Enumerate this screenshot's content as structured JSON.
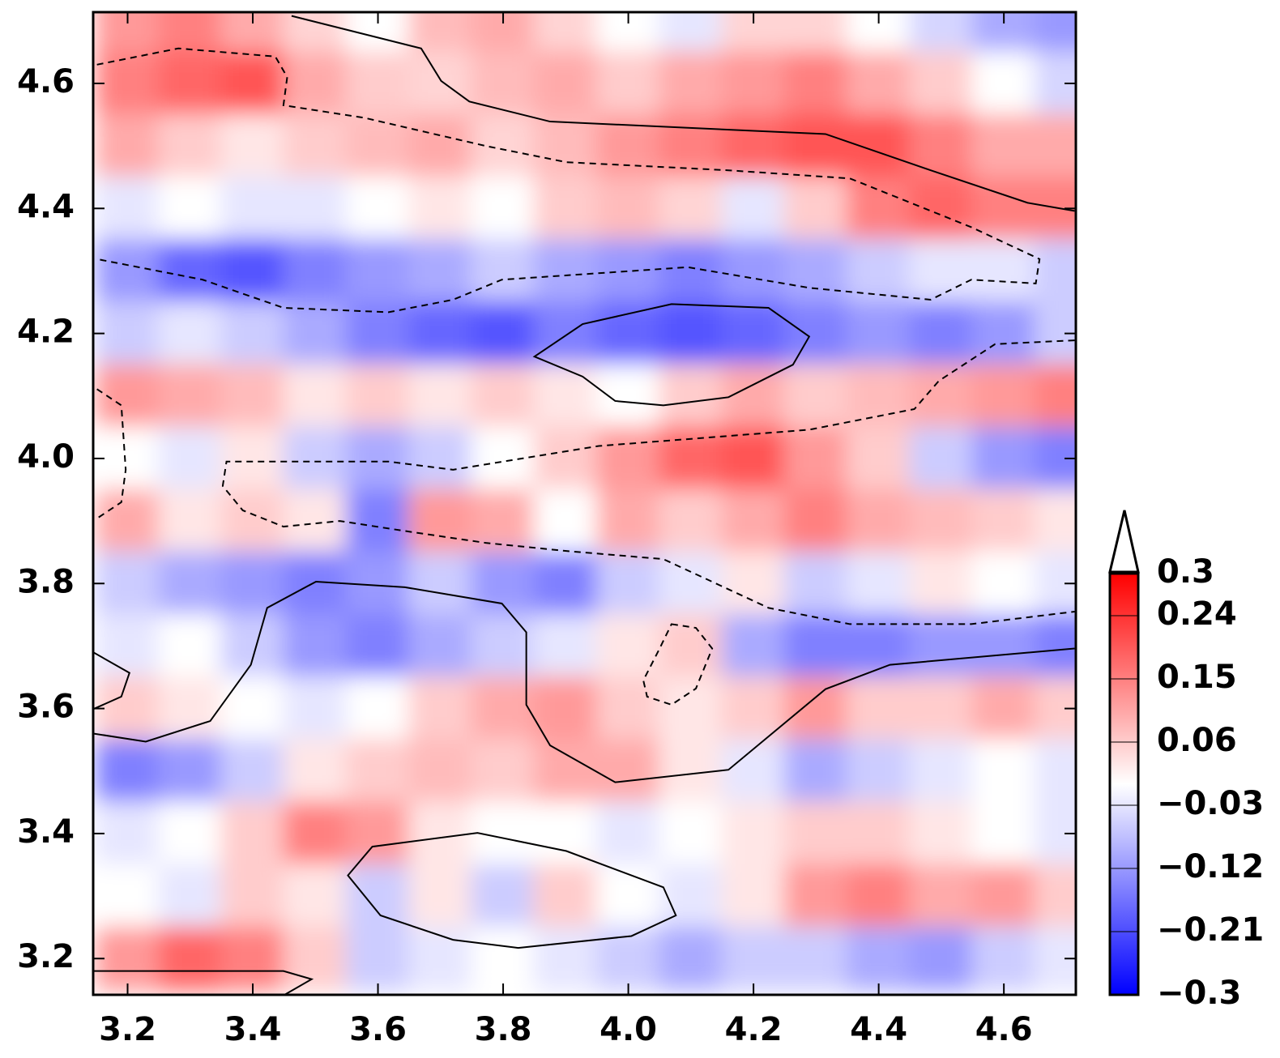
{
  "chart_data": {
    "type": "heatmap",
    "x": [
      3.2,
      3.3,
      3.4,
      3.5,
      3.6,
      3.7,
      3.8,
      3.9,
      4.0,
      4.1,
      4.2,
      4.3,
      4.4,
      4.5,
      4.6,
      4.7
    ],
    "y": [
      4.7,
      4.6,
      4.5,
      4.4,
      4.3,
      4.2,
      4.1,
      4.0,
      3.9,
      3.8,
      3.7,
      3.6,
      3.5,
      3.4,
      3.3,
      3.2
    ],
    "z": [
      [
        0.12,
        0.15,
        0.1,
        0.05,
        0.0,
        0.08,
        0.1,
        0.05,
        0.0,
        -0.03,
        0.05,
        0.05,
        0.0,
        -0.05,
        -0.1,
        -0.12
      ],
      [
        0.15,
        0.18,
        0.2,
        0.1,
        0.06,
        0.05,
        0.08,
        0.1,
        0.06,
        0.1,
        0.12,
        0.15,
        0.1,
        0.06,
        0.0,
        -0.05
      ],
      [
        0.1,
        0.06,
        0.03,
        0.06,
        0.08,
        0.1,
        0.05,
        0.08,
        0.12,
        0.15,
        0.18,
        0.2,
        0.2,
        0.15,
        0.1,
        0.1
      ],
      [
        -0.03,
        0.0,
        -0.03,
        -0.03,
        0.0,
        0.03,
        0.0,
        0.06,
        0.08,
        0.05,
        -0.03,
        0.06,
        0.15,
        0.18,
        0.15,
        0.15
      ],
      [
        -0.12,
        -0.18,
        -0.2,
        -0.15,
        -0.12,
        -0.1,
        -0.06,
        -0.1,
        -0.12,
        -0.15,
        -0.12,
        -0.1,
        -0.06,
        -0.03,
        -0.03,
        -0.06
      ],
      [
        -0.06,
        -0.03,
        -0.06,
        -0.1,
        -0.15,
        -0.18,
        -0.2,
        -0.15,
        -0.18,
        -0.2,
        -0.18,
        -0.15,
        -0.12,
        -0.15,
        -0.12,
        -0.06
      ],
      [
        0.12,
        0.1,
        0.08,
        0.03,
        0.06,
        0.03,
        0.06,
        0.03,
        0.0,
        0.06,
        0.1,
        0.06,
        0.08,
        0.1,
        0.12,
        0.15
      ],
      [
        0.0,
        -0.03,
        0.03,
        -0.06,
        -0.1,
        -0.06,
        0.0,
        0.06,
        0.12,
        0.18,
        0.2,
        0.12,
        0.06,
        -0.06,
        -0.12,
        -0.15
      ],
      [
        0.1,
        0.03,
        0.06,
        0.03,
        -0.15,
        0.12,
        0.1,
        0.0,
        0.1,
        0.06,
        0.1,
        0.15,
        0.1,
        0.08,
        0.06,
        0.03
      ],
      [
        -0.06,
        -0.1,
        -0.12,
        -0.15,
        -0.12,
        -0.06,
        -0.12,
        -0.15,
        -0.06,
        -0.03,
        0.03,
        -0.06,
        -0.03,
        0.03,
        0.0,
        -0.03
      ],
      [
        -0.03,
        0.0,
        -0.06,
        -0.12,
        -0.15,
        -0.1,
        -0.06,
        -0.03,
        0.03,
        0.06,
        -0.1,
        -0.15,
        -0.15,
        -0.12,
        -0.12,
        -0.15
      ],
      [
        0.06,
        0.03,
        0.0,
        -0.03,
        0.0,
        0.06,
        0.1,
        0.12,
        0.06,
        0.03,
        0.06,
        0.12,
        0.06,
        0.06,
        0.1,
        0.06
      ],
      [
        -0.15,
        -0.12,
        -0.06,
        0.03,
        0.06,
        0.08,
        0.06,
        0.1,
        0.1,
        0.03,
        -0.03,
        -0.1,
        -0.06,
        -0.03,
        0.0,
        -0.03
      ],
      [
        -0.03,
        0.0,
        0.06,
        0.15,
        0.12,
        0.03,
        0.0,
        0.0,
        -0.03,
        0.0,
        0.03,
        0.06,
        0.06,
        0.03,
        0.0,
        -0.03
      ],
      [
        0.0,
        -0.03,
        0.06,
        0.03,
        -0.06,
        0.03,
        -0.06,
        0.06,
        0.0,
        -0.03,
        0.03,
        0.12,
        0.15,
        0.1,
        0.12,
        0.06
      ],
      [
        0.12,
        0.18,
        0.15,
        0.06,
        -0.06,
        -0.03,
        0.0,
        -0.03,
        -0.06,
        -0.1,
        -0.06,
        -0.06,
        -0.1,
        -0.12,
        -0.06,
        -0.03
      ]
    ],
    "colormap": [
      "#0000ff",
      "#ffffff",
      "#ff0000"
    ],
    "clim": [
      -0.3,
      0.3
    ],
    "colorbar_ticks": [
      {
        "value": 0.3,
        "label": "0.3"
      },
      {
        "value": 0.24,
        "label": "0.24"
      },
      {
        "value": 0.15,
        "label": "0.15"
      },
      {
        "value": 0.06,
        "label": "0.06"
      },
      {
        "value": -0.03,
        "label": "−0.03"
      },
      {
        "value": -0.12,
        "label": "−0.12"
      },
      {
        "value": -0.21,
        "label": "−0.21"
      },
      {
        "value": -0.3,
        "label": "−0.3"
      }
    ],
    "xlim": [
      3.145,
      4.715
    ],
    "ylim": [
      3.142,
      4.714
    ],
    "xticks": [
      {
        "value": 3.2,
        "label": "3.2"
      },
      {
        "value": 3.4,
        "label": "3.4"
      },
      {
        "value": 3.6,
        "label": "3.6"
      },
      {
        "value": 3.8,
        "label": "3.8"
      },
      {
        "value": 4.0,
        "label": "4.0"
      },
      {
        "value": 4.2,
        "label": "4.2"
      },
      {
        "value": 4.4,
        "label": "4.4"
      },
      {
        "value": 4.6,
        "label": "4.6"
      }
    ],
    "yticks": [
      {
        "value": 3.2,
        "label": "3.2"
      },
      {
        "value": 3.4,
        "label": "3.4"
      },
      {
        "value": 3.6,
        "label": "3.6"
      },
      {
        "value": 3.8,
        "label": "3.8"
      },
      {
        "value": 4.0,
        "label": "4.0"
      },
      {
        "value": 4.2,
        "label": "4.2"
      },
      {
        "value": 4.4,
        "label": "4.4"
      },
      {
        "value": 4.6,
        "label": "4.6"
      }
    ],
    "contours": [
      {
        "style": "solid",
        "closed": false,
        "x": [
          3.462,
          3.669,
          3.701,
          3.746,
          3.875,
          4.315,
          4.483,
          4.638,
          4.713
        ],
        "y": [
          4.708,
          4.656,
          4.604,
          4.571,
          4.539,
          4.519,
          4.461,
          4.409,
          4.396
        ]
      },
      {
        "style": "dashed",
        "closed": false,
        "x": [
          3.151,
          3.281,
          3.436,
          3.455,
          3.449,
          3.578,
          3.772,
          3.901,
          4.16,
          4.354,
          4.548,
          4.657,
          4.651,
          4.548,
          4.483,
          4.289,
          4.095,
          3.798,
          3.72,
          3.617,
          3.449,
          3.32,
          3.151
        ],
        "y": [
          4.63,
          4.656,
          4.643,
          4.61,
          4.565,
          4.545,
          4.5,
          4.474,
          4.461,
          4.448,
          4.37,
          4.319,
          4.28,
          4.286,
          4.254,
          4.273,
          4.306,
          4.286,
          4.254,
          4.234,
          4.241,
          4.286,
          4.319
        ]
      },
      {
        "style": "solid",
        "closed": true,
        "x": [
          3.85,
          3.927,
          4.069,
          4.224,
          4.289,
          4.263,
          4.16,
          4.056,
          3.979,
          3.927
        ],
        "y": [
          4.163,
          4.215,
          4.247,
          4.241,
          4.195,
          4.15,
          4.098,
          4.085,
          4.092,
          4.131
        ]
      },
      {
        "style": "dashed",
        "closed": false,
        "x": [
          4.713,
          4.586,
          4.496,
          4.457,
          4.289,
          3.953,
          3.72,
          3.617,
          3.358,
          3.352,
          3.384,
          3.449,
          3.539,
          3.643,
          3.772,
          3.901,
          4.056,
          4.224,
          4.354,
          4.548,
          4.713
        ],
        "y": [
          4.189,
          4.183,
          4.124,
          4.079,
          4.046,
          4.02,
          3.982,
          3.995,
          3.995,
          3.956,
          3.917,
          3.891,
          3.9,
          3.884,
          3.865,
          3.852,
          3.839,
          3.761,
          3.735,
          3.735,
          3.755
        ]
      },
      {
        "style": "dashed",
        "closed": false,
        "x": [
          3.151,
          3.19,
          3.197,
          3.19,
          3.151
        ],
        "y": [
          4.111,
          4.085,
          3.982,
          3.93,
          3.904
        ]
      },
      {
        "style": "dashed",
        "closed": true,
        "x": [
          4.069,
          4.108,
          4.134,
          4.108,
          4.069,
          4.03,
          4.024,
          4.05
        ],
        "y": [
          3.735,
          3.729,
          3.696,
          3.632,
          3.606,
          3.619,
          3.645,
          3.696
        ]
      },
      {
        "style": "solid",
        "closed": false,
        "x": [
          3.145,
          3.229,
          3.332,
          3.397,
          3.423,
          3.501,
          3.643,
          3.798,
          3.837,
          3.837,
          3.875,
          3.979,
          4.16,
          4.315,
          4.418,
          4.713
        ],
        "y": [
          3.56,
          3.547,
          3.58,
          3.67,
          3.761,
          3.803,
          3.794,
          3.768,
          3.722,
          3.606,
          3.541,
          3.482,
          3.502,
          3.631,
          3.67,
          3.696
        ]
      },
      {
        "style": "solid",
        "closed": false,
        "x": [
          3.145,
          3.203,
          3.19,
          3.145
        ],
        "y": [
          3.69,
          3.657,
          3.619,
          3.599
        ]
      },
      {
        "style": "solid",
        "closed": true,
        "x": [
          3.552,
          3.591,
          3.759,
          3.901,
          4.056,
          4.076,
          4.005,
          3.824,
          3.72,
          3.604
        ],
        "y": [
          3.333,
          3.379,
          3.401,
          3.372,
          3.314,
          3.269,
          3.236,
          3.217,
          3.23,
          3.269
        ]
      },
      {
        "style": "solid",
        "closed": false,
        "x": [
          3.145,
          3.449,
          3.494,
          3.449
        ],
        "y": [
          3.18,
          3.18,
          3.167,
          3.141
        ]
      }
    ]
  }
}
